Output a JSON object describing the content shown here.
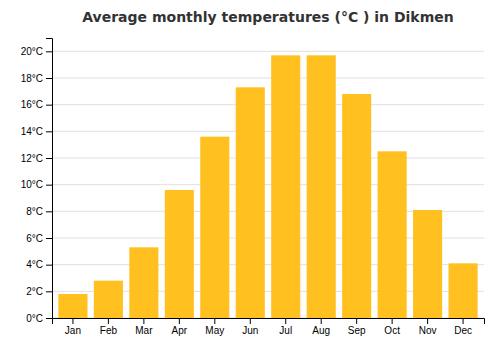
{
  "chart_data": {
    "type": "bar",
    "title": "Average monthly temperatures (°C ) in Dikmen",
    "categories": [
      "Jan",
      "Feb",
      "Mar",
      "Apr",
      "May",
      "Jun",
      "Jul",
      "Aug",
      "Sep",
      "Oct",
      "Nov",
      "Dec"
    ],
    "values": [
      1.8,
      2.8,
      5.3,
      9.6,
      13.6,
      17.3,
      19.7,
      19.7,
      16.8,
      12.5,
      8.1,
      4.1
    ],
    "color": "#FFC020",
    "ylim": [
      0,
      21
    ],
    "yticks": [
      {
        "value": 0,
        "label": "0°C"
      },
      {
        "value": 2,
        "label": "2°C"
      },
      {
        "value": 4,
        "label": "4°C"
      },
      {
        "value": 6,
        "label": "6°C"
      },
      {
        "value": 8,
        "label": "8°C"
      },
      {
        "value": 10,
        "label": "10°C"
      },
      {
        "value": 12,
        "label": "12°C"
      },
      {
        "value": 14,
        "label": "14°C"
      },
      {
        "value": 16,
        "label": "16°C"
      },
      {
        "value": 18,
        "label": "18°C"
      },
      {
        "value": 20,
        "label": "20°C"
      }
    ],
    "grid": true
  }
}
